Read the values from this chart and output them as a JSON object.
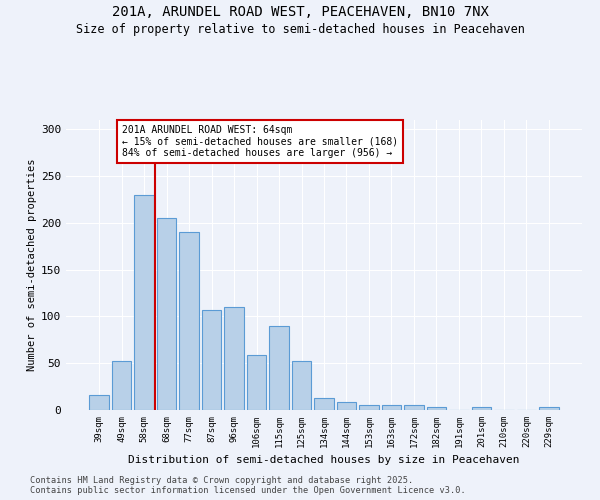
{
  "title_line1": "201A, ARUNDEL ROAD WEST, PEACEHAVEN, BN10 7NX",
  "title_line2": "Size of property relative to semi-detached houses in Peacehaven",
  "xlabel": "Distribution of semi-detached houses by size in Peacehaven",
  "ylabel": "Number of semi-detached properties",
  "categories": [
    "39sqm",
    "49sqm",
    "58sqm",
    "68sqm",
    "77sqm",
    "87sqm",
    "96sqm",
    "106sqm",
    "115sqm",
    "125sqm",
    "134sqm",
    "144sqm",
    "153sqm",
    "163sqm",
    "172sqm",
    "182sqm",
    "191sqm",
    "201sqm",
    "210sqm",
    "220sqm",
    "229sqm"
  ],
  "values": [
    16,
    52,
    230,
    205,
    190,
    107,
    110,
    59,
    90,
    52,
    13,
    9,
    5,
    5,
    5,
    3,
    0,
    3,
    0,
    0,
    3
  ],
  "bar_color": "#b8d0e8",
  "bar_edge_color": "#5b9bd5",
  "annotation_text": "201A ARUNDEL ROAD WEST: 64sqm\n← 15% of semi-detached houses are smaller (168)\n84% of semi-detached houses are larger (956) →",
  "annotation_box_color": "#ffffff",
  "annotation_box_edge": "#cc0000",
  "vline_color": "#cc0000",
  "ylim": [
    0,
    310
  ],
  "yticks": [
    0,
    50,
    100,
    150,
    200,
    250,
    300
  ],
  "footer_line1": "Contains HM Land Registry data © Crown copyright and database right 2025.",
  "footer_line2": "Contains public sector information licensed under the Open Government Licence v3.0.",
  "bg_color": "#eef2fa",
  "grid_color": "#ffffff"
}
